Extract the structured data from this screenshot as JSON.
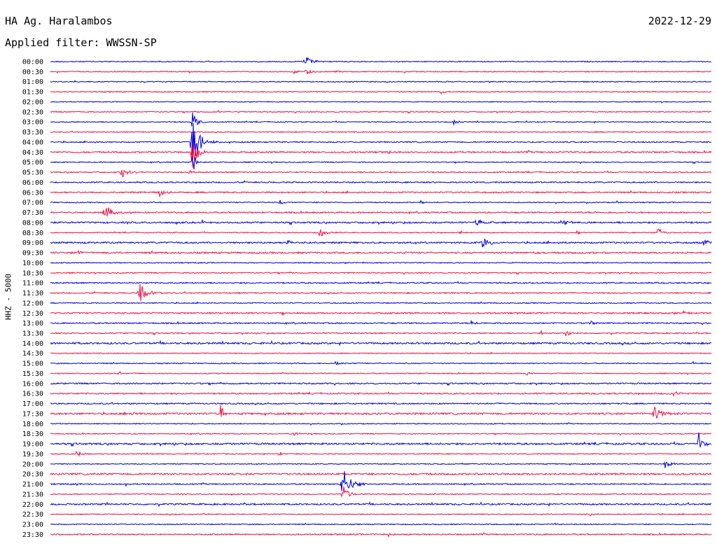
{
  "header": {
    "station": "HA Ag. Haralambos",
    "date": "2022-12-29",
    "filter": "Applied filter: WWSSN-SP"
  },
  "axis_label": "HHZ - 5000",
  "colors": {
    "blue": "#0000dd",
    "red": "#ee1144"
  },
  "rows": [
    {
      "time": "00:00",
      "color": "blue",
      "noise": 1.0,
      "events": [
        [
          435,
          8,
          4
        ]
      ]
    },
    {
      "time": "00:30",
      "color": "red",
      "noise": 1.0,
      "events": [
        [
          437,
          5,
          3
        ],
        [
          420,
          4,
          2
        ],
        [
          478,
          3,
          2
        ]
      ]
    },
    {
      "time": "01:00",
      "color": "blue",
      "noise": 1.0,
      "events": []
    },
    {
      "time": "01:30",
      "color": "red",
      "noise": 1.0,
      "events": [
        [
          630,
          4,
          2
        ]
      ]
    },
    {
      "time": "02:00",
      "color": "blue",
      "noise": 0.8,
      "events": []
    },
    {
      "time": "02:30",
      "color": "red",
      "noise": 1.0,
      "events": [
        [
          310,
          3,
          3
        ]
      ]
    },
    {
      "time": "03:00",
      "color": "blue",
      "noise": 1.0,
      "events": [
        [
          275,
          14,
          3
        ],
        [
          648,
          5,
          2
        ]
      ]
    },
    {
      "time": "03:30",
      "color": "red",
      "noise": 1.0,
      "events": []
    },
    {
      "time": "04:00",
      "color": "blue",
      "noise": 1.2,
      "events": [
        [
          275,
          40,
          4
        ]
      ]
    },
    {
      "time": "04:30",
      "color": "red",
      "noise": 1.5,
      "events": [
        [
          275,
          28,
          3
        ],
        [
          555,
          3,
          2
        ]
      ]
    },
    {
      "time": "05:00",
      "color": "blue",
      "noise": 1.0,
      "events": [
        [
          275,
          18,
          2
        ]
      ]
    },
    {
      "time": "05:30",
      "color": "red",
      "noise": 1.2,
      "events": [
        [
          175,
          8,
          4
        ],
        [
          270,
          4,
          2
        ]
      ]
    },
    {
      "time": "06:00",
      "color": "blue",
      "noise": 1.3,
      "events": []
    },
    {
      "time": "06:30",
      "color": "red",
      "noise": 1.4,
      "events": [
        [
          228,
          6,
          4
        ]
      ]
    },
    {
      "time": "07:00",
      "color": "blue",
      "noise": 1.0,
      "events": [
        [
          400,
          4,
          2
        ],
        [
          600,
          3,
          2
        ],
        [
          880,
          3,
          2
        ]
      ]
    },
    {
      "time": "07:30",
      "color": "red",
      "noise": 1.4,
      "events": [
        [
          150,
          12,
          4
        ]
      ]
    },
    {
      "time": "08:00",
      "color": "blue",
      "noise": 1.6,
      "events": [
        [
          680,
          7,
          3
        ],
        [
          803,
          8,
          3
        ],
        [
          288,
          3,
          2
        ]
      ]
    },
    {
      "time": "08:30",
      "color": "red",
      "noise": 1.0,
      "events": [
        [
          457,
          10,
          3
        ],
        [
          940,
          7,
          3
        ],
        [
          657,
          3,
          2
        ],
        [
          823,
          3,
          2
        ]
      ]
    },
    {
      "time": "09:00",
      "color": "blue",
      "noise": 1.6,
      "events": [
        [
          690,
          9,
          4
        ],
        [
          410,
          4,
          3
        ],
        [
          1005,
          5,
          3
        ]
      ]
    },
    {
      "time": "09:30",
      "color": "red",
      "noise": 1.6,
      "events": [
        [
          108,
          5,
          3
        ],
        [
          763,
          3,
          2
        ]
      ]
    },
    {
      "time": "10:00",
      "color": "blue",
      "noise": 1.0,
      "events": []
    },
    {
      "time": "10:30",
      "color": "red",
      "noise": 1.1,
      "events": []
    },
    {
      "time": "11:00",
      "color": "blue",
      "noise": 1.3,
      "events": []
    },
    {
      "time": "11:30",
      "color": "red",
      "noise": 1.2,
      "events": [
        [
          200,
          14,
          4
        ]
      ]
    },
    {
      "time": "12:00",
      "color": "blue",
      "noise": 1.0,
      "events": []
    },
    {
      "time": "12:30",
      "color": "red",
      "noise": 1.5,
      "events": [
        [
          975,
          3,
          2
        ],
        [
          403,
          3,
          2
        ]
      ]
    },
    {
      "time": "13:00",
      "color": "blue",
      "noise": 1.3,
      "events": [
        [
          845,
          5,
          3
        ],
        [
          673,
          4,
          2
        ]
      ]
    },
    {
      "time": "13:30",
      "color": "red",
      "noise": 1.2,
      "events": [
        [
          808,
          6,
          3
        ],
        [
          773,
          3,
          2
        ]
      ]
    },
    {
      "time": "14:00",
      "color": "blue",
      "noise": 1.8,
      "events": []
    },
    {
      "time": "14:30",
      "color": "red",
      "noise": 0.9,
      "events": []
    },
    {
      "time": "15:00",
      "color": "blue",
      "noise": 1.0,
      "events": [
        [
          480,
          3,
          3
        ],
        [
          990,
          3,
          2
        ]
      ]
    },
    {
      "time": "15:30",
      "color": "red",
      "noise": 1.0,
      "events": [
        [
          752,
          4,
          2
        ],
        [
          170,
          3,
          2
        ]
      ]
    },
    {
      "time": "16:00",
      "color": "blue",
      "noise": 1.4,
      "events": []
    },
    {
      "time": "16:30",
      "color": "red",
      "noise": 1.4,
      "events": [
        [
          960,
          3,
          5
        ]
      ]
    },
    {
      "time": "17:00",
      "color": "blue",
      "noise": 1.3,
      "events": []
    },
    {
      "time": "17:30",
      "color": "red",
      "noise": 1.8,
      "events": [
        [
          315,
          22,
          2
        ],
        [
          935,
          11,
          4
        ],
        [
          180,
          3,
          3
        ]
      ]
    },
    {
      "time": "18:00",
      "color": "blue",
      "noise": 1.0,
      "events": []
    },
    {
      "time": "18:30",
      "color": "red",
      "noise": 1.0,
      "events": [
        [
          420,
          3,
          2
        ]
      ]
    },
    {
      "time": "19:00",
      "color": "blue",
      "noise": 1.8,
      "events": [
        [
          998,
          20,
          2
        ]
      ]
    },
    {
      "time": "19:30",
      "color": "red",
      "noise": 1.0,
      "events": [
        [
          110,
          7,
          2
        ],
        [
          398,
          4,
          2
        ]
      ]
    },
    {
      "time": "20:00",
      "color": "blue",
      "noise": 1.0,
      "events": [
        [
          950,
          7,
          3
        ]
      ]
    },
    {
      "time": "20:30",
      "color": "red",
      "noise": 1.8,
      "events": []
    },
    {
      "time": "21:00",
      "color": "blue",
      "noise": 1.2,
      "events": [
        [
          490,
          22,
          5
        ],
        [
          105,
          3,
          2
        ],
        [
          180,
          2,
          1
        ]
      ]
    },
    {
      "time": "21:30",
      "color": "red",
      "noise": 1.0,
      "events": [
        [
          490,
          14,
          3
        ]
      ]
    },
    {
      "time": "22:00",
      "color": "blue",
      "noise": 1.6,
      "events": []
    },
    {
      "time": "22:30",
      "color": "red",
      "noise": 1.0,
      "events": [
        [
          843,
          3,
          2
        ],
        [
          290,
          2,
          2
        ]
      ]
    },
    {
      "time": "23:00",
      "color": "blue",
      "noise": 1.0,
      "events": [
        [
          735,
          2,
          2
        ],
        [
          793,
          2,
          1
        ]
      ]
    },
    {
      "time": "23:30",
      "color": "red",
      "noise": 1.3,
      "events": [
        [
          555,
          3,
          2
        ]
      ]
    }
  ]
}
